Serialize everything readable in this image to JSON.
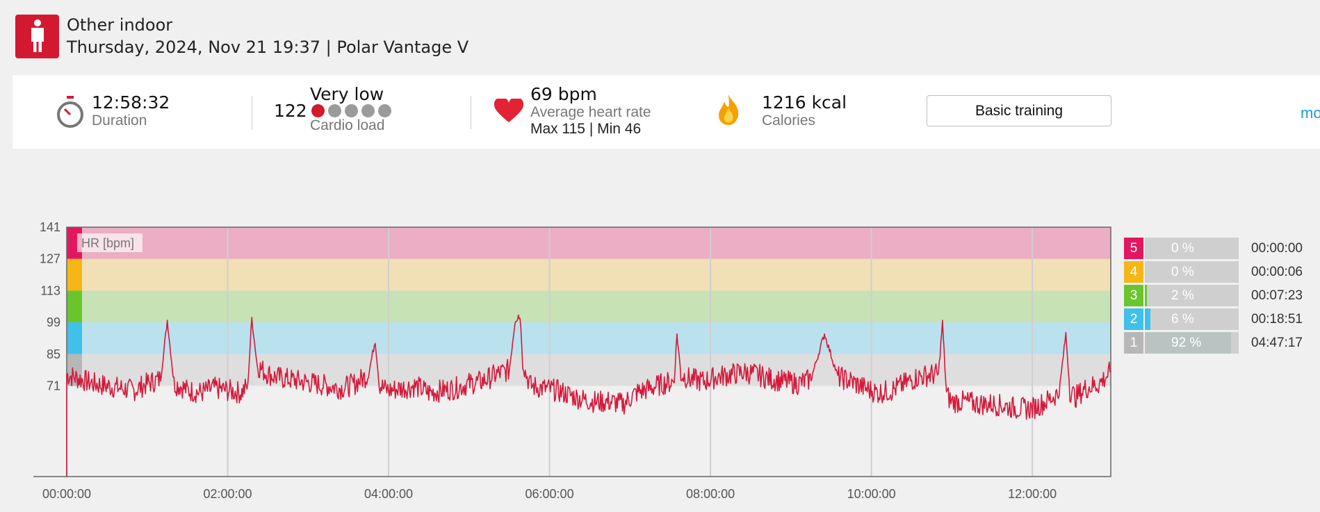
{
  "header": {
    "sport": "Other indoor",
    "session": "Thursday, 2024, Nov 21 19:37 | Polar Vantage V",
    "sport_icon": "person-standing-icon"
  },
  "summary": {
    "duration": {
      "value": "12:58:32",
      "label": "Duration",
      "icon": "stopwatch-icon"
    },
    "cardio": {
      "value": "122",
      "level": "Very low",
      "label": "Cardio load",
      "dots_total": 5,
      "dots_active": 1
    },
    "heart": {
      "value": "69 bpm",
      "label": "Average heart rate",
      "maxmin": "Max 115  |  Min 46",
      "icon": "heart-icon"
    },
    "calories": {
      "value": "1216 kcal",
      "label": "Calories",
      "icon": "flame-icon"
    },
    "basic_button": "Basic training",
    "more_link": "mo"
  },
  "colors": {
    "brand_red": "#d3192f",
    "hr_line": "#d4193a",
    "zone5": "#e2175f",
    "zone4": "#f5b616",
    "zone3": "#6ac52d",
    "zone2": "#40c0ea",
    "zone1": "#b7b7b7",
    "link": "#1a9bd7"
  },
  "chart_data": {
    "type": "line",
    "title": "",
    "series_label": "HR [bpm]",
    "xlabel": "",
    "ylabel": "HR [bpm]",
    "x_ticks": [
      "00:00:00",
      "02:00:00",
      "04:00:00",
      "06:00:00",
      "08:00:00",
      "10:00:00",
      "12:00:00"
    ],
    "y_ticks": [
      "141",
      "127",
      "113",
      "99",
      "85",
      "71"
    ],
    "ylim": [
      31,
      141
    ],
    "x_range_minutes": [
      0,
      778.5
    ],
    "zones": [
      {
        "zone": 5,
        "from": 127,
        "to": 141
      },
      {
        "zone": 4,
        "from": 113,
        "to": 127
      },
      {
        "zone": 3,
        "from": 99,
        "to": 113
      },
      {
        "zone": 2,
        "from": 85,
        "to": 99
      },
      {
        "zone": 1,
        "from": 71,
        "to": 85
      }
    ],
    "series": [
      {
        "name": "HR [bpm]",
        "x_minutes": [
          0,
          10,
          20,
          30,
          40,
          50,
          60,
          70,
          75,
          80,
          85,
          90,
          100,
          110,
          120,
          130,
          135,
          138,
          142,
          148,
          155,
          165,
          175,
          185,
          195,
          205,
          215,
          225,
          230,
          233,
          236,
          240,
          250,
          260,
          270,
          280,
          290,
          300,
          310,
          320,
          330,
          335,
          338,
          340,
          342,
          346,
          355,
          365,
          375,
          385,
          395,
          405,
          415,
          425,
          435,
          445,
          453,
          455,
          458,
          465,
          475,
          485,
          495,
          505,
          515,
          525,
          535,
          545,
          555,
          565,
          575,
          585,
          595,
          605,
          615,
          625,
          635,
          645,
          650,
          653,
          656,
          660,
          670,
          680,
          690,
          700,
          710,
          720,
          730,
          740,
          745,
          748,
          752,
          760,
          770,
          778
        ],
        "values": [
          76,
          74,
          72,
          71,
          70,
          69,
          72,
          74,
          100,
          72,
          71,
          69,
          68,
          70,
          69,
          68,
          71,
          101,
          80,
          77,
          75,
          74,
          73,
          72,
          71,
          70,
          72,
          76,
          91,
          72,
          70,
          69,
          70,
          71,
          68,
          69,
          70,
          72,
          73,
          76,
          78,
          103,
          102,
          83,
          77,
          71,
          70,
          69,
          67,
          65,
          64,
          64,
          63,
          68,
          70,
          72,
          73,
          94,
          76,
          74,
          73,
          75,
          76,
          77,
          76,
          74,
          73,
          72,
          74,
          94,
          75,
          73,
          70,
          68,
          69,
          72,
          75,
          76,
          76,
          99,
          67,
          64,
          64,
          63,
          63,
          62,
          61,
          61,
          64,
          68,
          94,
          69,
          66,
          70,
          72,
          77
        ]
      }
    ]
  },
  "zone_panel": [
    {
      "zone": "5",
      "pct": "0 %",
      "fraction": 0.0,
      "time": "00:00:00"
    },
    {
      "zone": "4",
      "pct": "0 %",
      "fraction": 0.0,
      "time": "00:00:06"
    },
    {
      "zone": "3",
      "pct": "2 %",
      "fraction": 0.02,
      "time": "00:07:23"
    },
    {
      "zone": "2",
      "pct": "6 %",
      "fraction": 0.06,
      "time": "00:18:51"
    },
    {
      "zone": "1",
      "pct": "92 %",
      "fraction": 0.92,
      "time": "04:47:17"
    }
  ]
}
